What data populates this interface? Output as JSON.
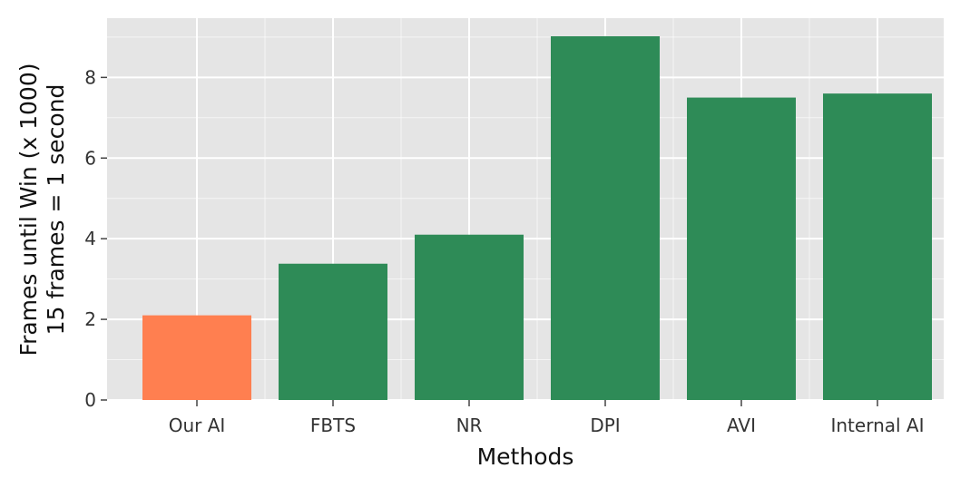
{
  "chart_data": {
    "type": "bar",
    "xlabel": "Methods",
    "ylabel_lines": [
      "Frames until Win (x 1000)",
      "15 frames = 1 second"
    ],
    "categories": [
      "Our AI",
      "FBTS",
      "NR",
      "DPI",
      "AVI",
      "Internal AI"
    ],
    "values": [
      2.1,
      3.38,
      4.1,
      9.02,
      7.5,
      7.6
    ],
    "colors": [
      "#ff7f50",
      "#2e8b57",
      "#2e8b57",
      "#2e8b57",
      "#2e8b57",
      "#2e8b57"
    ],
    "ylim": [
      0,
      9.47
    ],
    "yticks": [
      0,
      2,
      4,
      6,
      8
    ],
    "ytick_labels": [
      "0",
      "2",
      "4",
      "6",
      "8"
    ],
    "grid": true,
    "background": "#e5e5e5",
    "grid_color": "#ffffff"
  }
}
